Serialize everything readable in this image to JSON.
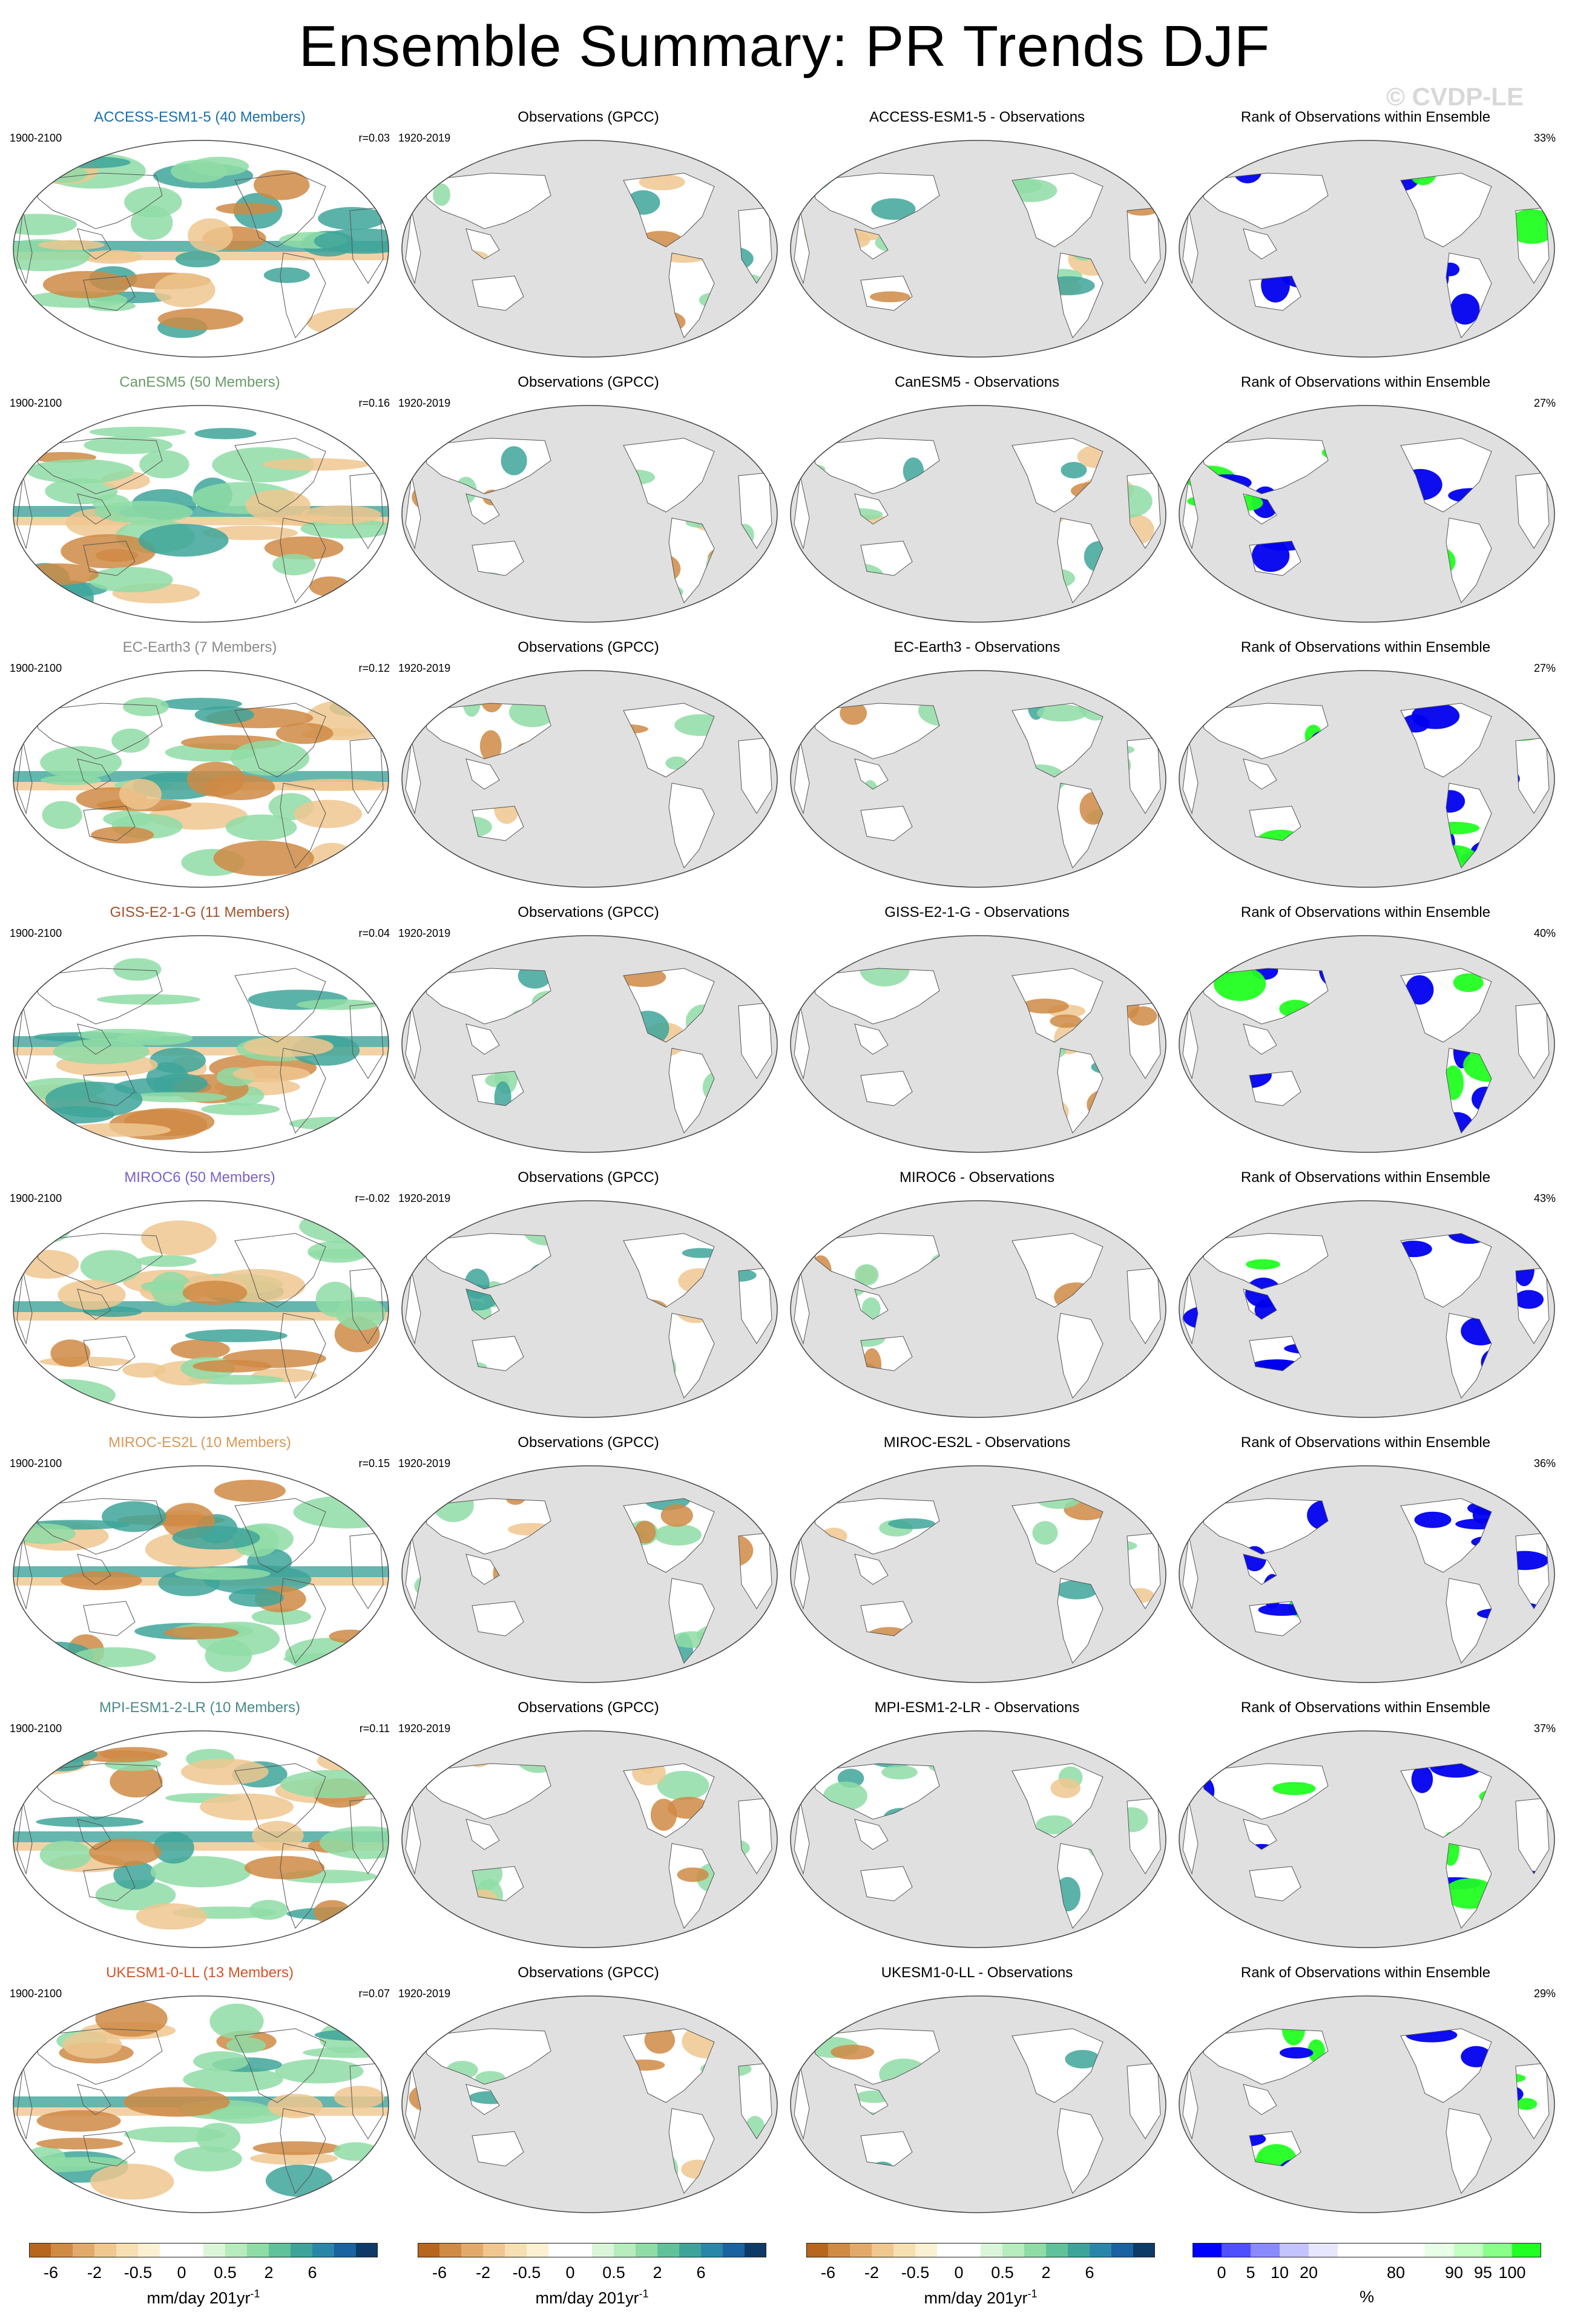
{
  "title": "Ensemble Summary: PR Trends DJF",
  "copyright": "© CVDP-LE",
  "column_labels": {
    "obs_title": "Observations (GPCC)",
    "rank_title": "Rank of Observations within Ensemble",
    "model_years": "1900-2100",
    "obs_years": "1920-2019"
  },
  "rows": [
    {
      "model_title": "ACCESS-ESM1-5 (40 Members)",
      "model_color": "#1c6fa8",
      "r": "r=0.03",
      "diff_title": "ACCESS-ESM1-5 - Observations",
      "rank_pct": "33%"
    },
    {
      "model_title": "CanESM5 (50 Members)",
      "model_color": "#6a9a6a",
      "r": "r=0.16",
      "diff_title": "CanESM5 - Observations",
      "rank_pct": "27%"
    },
    {
      "model_title": "EC-Earth3 (7 Members)",
      "model_color": "#8a8a8a",
      "r": "r=0.12",
      "diff_title": "EC-Earth3 - Observations",
      "rank_pct": "27%"
    },
    {
      "model_title": "GISS-E2-1-G (11 Members)",
      "model_color": "#a0522d",
      "r": "r=0.04",
      "diff_title": "GISS-E2-1-G - Observations",
      "rank_pct": "40%"
    },
    {
      "model_title": "MIROC6 (50 Members)",
      "model_color": "#7b5fc9",
      "r": "r=-0.02",
      "diff_title": "MIROC6 - Observations",
      "rank_pct": "43%"
    },
    {
      "model_title": "MIROC-ES2L (10 Members)",
      "model_color": "#d79a5a",
      "r": "r=0.15",
      "diff_title": "MIROC-ES2L - Observations",
      "rank_pct": "36%"
    },
    {
      "model_title": "MPI-ESM1-2-LR (10 Members)",
      "model_color": "#4a8a8a",
      "r": "r=0.11",
      "diff_title": "MPI-ESM1-2-LR - Observations",
      "rank_pct": "37%"
    },
    {
      "model_title": "UKESM1-0-LL (13 Members)",
      "model_color": "#d2552a",
      "r": "r=0.07",
      "diff_title": "UKESM1-0-LL - Observations",
      "rank_pct": "29%"
    }
  ],
  "trend_colorbar": {
    "colors": [
      "#b8651e",
      "#cf8a44",
      "#e2aa6a",
      "#efc78f",
      "#f6dfb0",
      "#fbf0d2",
      "#ffffff",
      "#ffffff",
      "#daf5d8",
      "#b6ecbe",
      "#8fdca6",
      "#5fc29a",
      "#3ea49a",
      "#2a86a8",
      "#1a62a0",
      "#0d3a66"
    ],
    "ticks": [
      "-6",
      "-2",
      "-0.5",
      "0",
      "0.5",
      "2",
      "6"
    ],
    "unit": "mm/day 201yr",
    "unit_sup": "-1"
  },
  "rank_colorbar": {
    "colors": [
      "#0000ff",
      "#5050ff",
      "#8a8aff",
      "#c3c3ff",
      "#e6e6ff",
      "#ffffff",
      "#ffffff",
      "#ffffff",
      "#e6ffe6",
      "#c3ffc3",
      "#8aff8a",
      "#22ff22"
    ],
    "ticks": [
      "0",
      "5",
      "10",
      "20",
      "80",
      "90",
      "95",
      "100"
    ],
    "unit": "%"
  },
  "map_palette": {
    "ocean_grey": "#e0e0e0",
    "rank_blue": "#0000ee",
    "rank_green": "#22ff22",
    "wet": "#8fdca6",
    "wet_strong": "#3ea49a",
    "dry": "#efc78f",
    "dry_strong": "#cf8a44"
  }
}
